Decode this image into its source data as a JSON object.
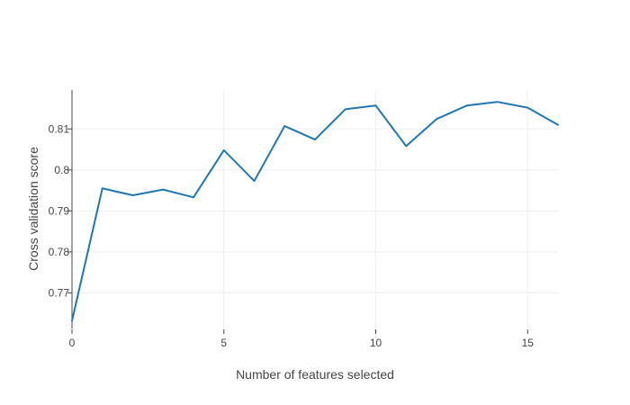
{
  "chart_data": {
    "type": "line",
    "title": "",
    "xlabel": "Number of features selected",
    "ylabel": "Cross validation score",
    "xlim": [
      0,
      16
    ],
    "ylim": [
      0.7613,
      0.8195
    ],
    "xticks": [
      0,
      5,
      10,
      15
    ],
    "xtick_labels": [
      "0",
      "5",
      "10",
      "15"
    ],
    "yticks": [
      0.77,
      0.78,
      0.79,
      0.8,
      0.81
    ],
    "ytick_labels": [
      "0.77",
      "0.78",
      "0.79",
      "0.8",
      "0.81"
    ],
    "grid": true,
    "legend": "none",
    "series": [
      {
        "color": "#1f77b4",
        "x": [
          0,
          1,
          2,
          3,
          4,
          5,
          6,
          7,
          8,
          9,
          10,
          11,
          12,
          13,
          14,
          15,
          16
        ],
        "values": [
          0.7632,
          0.7955,
          0.7938,
          0.7952,
          0.7933,
          0.8048,
          0.7973,
          0.8107,
          0.8074,
          0.8148,
          0.8157,
          0.8058,
          0.8124,
          0.8157,
          0.8166,
          0.8152,
          0.811
        ]
      }
    ]
  }
}
